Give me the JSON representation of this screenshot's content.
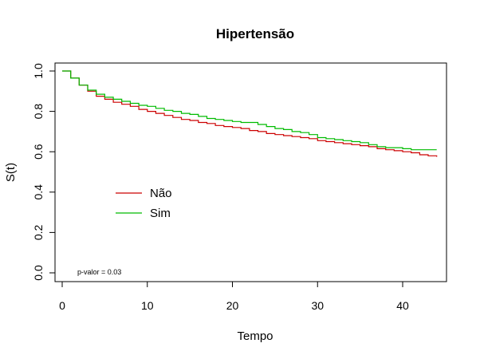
{
  "chart_data": {
    "type": "line",
    "title": "Hipertensão",
    "xlabel": "Tempo",
    "ylabel": "S(t)",
    "xlim": [
      0,
      45
    ],
    "ylim": [
      0,
      1
    ],
    "xticks": [
      "0",
      "10",
      "20",
      "30",
      "40"
    ],
    "yticks": [
      "0.0",
      "0.2",
      "0.4",
      "0.6",
      "0.8",
      "1.0"
    ],
    "grid": false,
    "step": true,
    "legend_position": "center-left",
    "annotation": "p-valor = 0.03",
    "series": [
      {
        "name": "Não",
        "color": "#cc0000",
        "x": [
          0,
          1,
          2,
          3,
          4,
          5,
          6,
          7,
          8,
          9,
          10,
          11,
          12,
          13,
          14,
          15,
          16,
          17,
          18,
          19,
          20,
          21,
          22,
          23,
          24,
          25,
          26,
          27,
          28,
          29,
          30,
          31,
          32,
          33,
          34,
          35,
          36,
          37,
          38,
          39,
          40,
          41,
          42,
          43,
          44
        ],
        "y": [
          1.0,
          0.965,
          0.93,
          0.9,
          0.875,
          0.86,
          0.845,
          0.835,
          0.825,
          0.81,
          0.8,
          0.79,
          0.78,
          0.77,
          0.76,
          0.755,
          0.745,
          0.74,
          0.73,
          0.725,
          0.72,
          0.715,
          0.705,
          0.7,
          0.69,
          0.685,
          0.68,
          0.675,
          0.67,
          0.665,
          0.655,
          0.65,
          0.645,
          0.64,
          0.635,
          0.63,
          0.625,
          0.615,
          0.61,
          0.605,
          0.6,
          0.595,
          0.585,
          0.58,
          0.575
        ]
      },
      {
        "name": "Sim",
        "color": "#00bb00",
        "x": [
          0,
          1,
          2,
          3,
          4,
          5,
          6,
          7,
          8,
          9,
          10,
          11,
          12,
          13,
          14,
          15,
          16,
          17,
          18,
          19,
          20,
          21,
          22,
          23,
          24,
          25,
          26,
          27,
          28,
          29,
          30,
          31,
          32,
          33,
          34,
          35,
          36,
          37,
          38,
          39,
          40,
          41,
          42,
          43,
          44
        ],
        "y": [
          1.0,
          0.965,
          0.93,
          0.905,
          0.885,
          0.87,
          0.86,
          0.85,
          0.84,
          0.83,
          0.825,
          0.815,
          0.805,
          0.8,
          0.79,
          0.785,
          0.775,
          0.765,
          0.76,
          0.755,
          0.75,
          0.745,
          0.745,
          0.735,
          0.725,
          0.715,
          0.71,
          0.7,
          0.695,
          0.685,
          0.67,
          0.665,
          0.66,
          0.655,
          0.65,
          0.645,
          0.635,
          0.625,
          0.62,
          0.62,
          0.615,
          0.61,
          0.61,
          0.61,
          0.61
        ]
      }
    ]
  }
}
